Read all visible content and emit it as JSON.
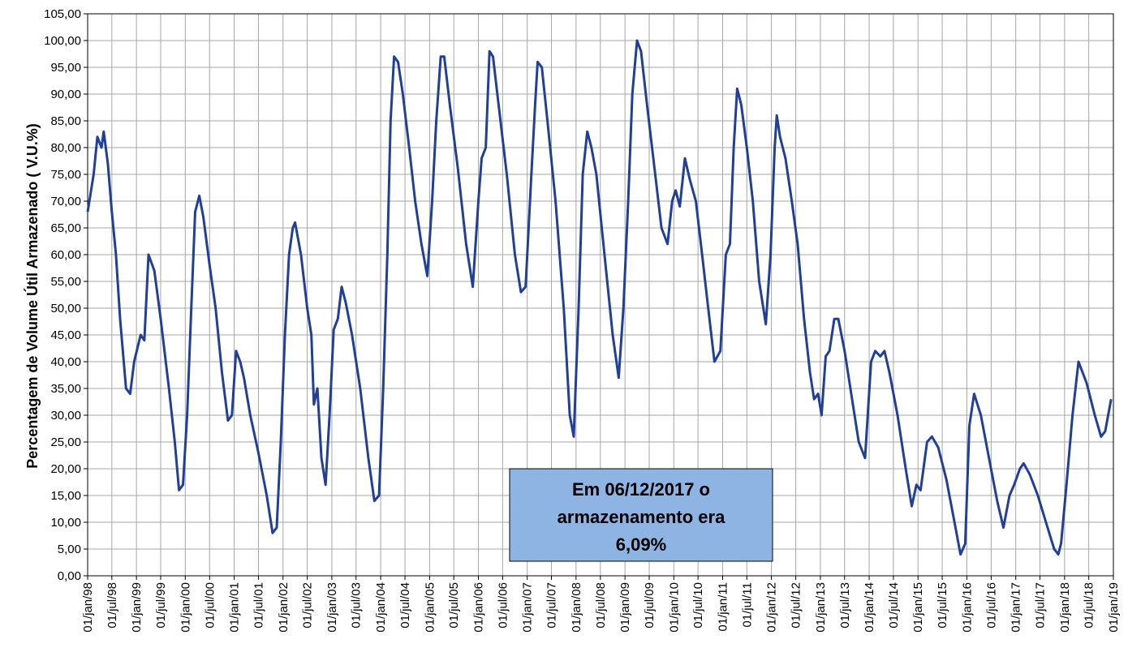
{
  "chart_data": {
    "type": "line",
    "y_label": "Percentagem de Volume Útil Armazenado ( V.U.%)",
    "annotation": [
      "Em 06/12/2017 o",
      "armazenamento era",
      "6,09%"
    ],
    "color": "#1f3f99",
    "grid": true,
    "x": [
      "1998-01-01",
      "1998-02-15",
      "1998-03-15",
      "1998-04-15",
      "1998-05-01",
      "1998-06-01",
      "1998-07-01",
      "1998-08-01",
      "1998-09-01",
      "1998-10-15",
      "1998-11-15",
      "1998-12-15",
      "1999-02-01",
      "1999-03-01",
      "1999-04-01",
      "1999-05-15",
      "1999-07-01",
      "1999-09-01",
      "1999-10-15",
      "1999-11-15",
      "1999-12-15",
      "2000-01-15",
      "2000-02-15",
      "2000-03-15",
      "2000-04-15",
      "2000-05-15",
      "2000-07-01",
      "2000-08-15",
      "2000-10-01",
      "2000-11-15",
      "2000-12-15",
      "2001-01-15",
      "2001-02-15",
      "2001-03-15",
      "2001-05-01",
      "2001-07-01",
      "2001-09-01",
      "2001-10-15",
      "2001-11-15",
      "2001-12-15",
      "2002-01-15",
      "2002-02-15",
      "2002-03-15",
      "2002-04-01",
      "2002-05-15",
      "2002-07-01",
      "2002-08-01",
      "2002-08-20",
      "2002-09-15",
      "2002-10-15",
      "2002-11-15",
      "2002-12-15",
      "2003-01-15",
      "2003-02-15",
      "2003-03-15",
      "2003-04-15",
      "2003-06-01",
      "2003-08-01",
      "2003-10-01",
      "2003-11-15",
      "2003-12-20",
      "2004-01-20",
      "2004-02-20",
      "2004-03-15",
      "2004-04-10",
      "2004-05-10",
      "2004-06-15",
      "2004-08-01",
      "2004-09-15",
      "2004-11-01",
      "2004-12-15",
      "2005-01-20",
      "2005-02-20",
      "2005-03-25",
      "2005-04-20",
      "2005-06-01",
      "2005-08-01",
      "2005-10-01",
      "2005-11-20",
      "2006-01-01",
      "2006-01-25",
      "2006-02-25",
      "2006-03-25",
      "2006-04-20",
      "2006-06-01",
      "2006-08-01",
      "2006-10-01",
      "2006-11-15",
      "2006-12-20",
      "2007-02-01",
      "2007-03-01",
      "2007-03-20",
      "2007-04-20",
      "2007-06-01",
      "2007-08-01",
      "2007-10-01",
      "2007-11-15",
      "2007-12-15",
      "2008-01-20",
      "2008-02-20",
      "2008-03-25",
      "2008-04-25",
      "2008-06-01",
      "2008-08-01",
      "2008-10-01",
      "2008-11-15",
      "2008-12-20",
      "2009-01-25",
      "2009-02-25",
      "2009-04-01",
      "2009-05-01",
      "2009-06-15",
      "2009-08-15",
      "2009-10-01",
      "2009-11-15",
      "2009-12-20",
      "2010-01-15",
      "2010-02-15",
      "2010-03-25",
      "2010-05-01",
      "2010-06-15",
      "2010-08-01",
      "2010-09-15",
      "2010-11-01",
      "2010-12-15",
      "2011-01-25",
      "2011-02-25",
      "2011-03-25",
      "2011-04-20",
      "2011-05-20",
      "2011-07-01",
      "2011-08-15",
      "2011-10-01",
      "2011-11-20",
      "2011-12-25",
      "2012-01-25",
      "2012-02-10",
      "2012-03-05",
      "2012-04-15",
      "2012-06-01",
      "2012-07-15",
      "2012-09-01",
      "2012-10-15",
      "2012-11-15",
      "2012-12-15",
      "2013-01-10",
      "2013-02-10",
      "2013-03-10",
      "2013-04-15",
      "2013-05-15",
      "2013-07-01",
      "2013-09-01",
      "2013-10-15",
      "2013-12-01",
      "2014-01-15",
      "2014-02-15",
      "2014-03-25",
      "2014-04-25",
      "2014-06-01",
      "2014-08-01",
      "2014-10-01",
      "2014-11-15",
      "2014-12-20",
      "2015-01-20",
      "2015-03-10",
      "2015-04-15",
      "2015-06-01",
      "2015-08-01",
      "2015-10-01",
      "2015-11-15",
      "2015-12-20",
      "2016-01-20",
      "2016-02-25",
      "2016-04-15",
      "2016-06-15",
      "2016-08-15",
      "2016-10-01",
      "2016-11-15",
      "2016-12-20",
      "2017-02-01",
      "2017-03-01",
      "2017-04-15",
      "2017-06-15",
      "2017-08-15",
      "2017-10-15",
      "2017-11-15",
      "2017-12-06",
      "2018-01-15",
      "2018-03-01",
      "2018-04-15",
      "2018-06-15",
      "2018-08-15",
      "2018-10-01",
      "2018-11-01",
      "2018-12-15"
    ],
    "values": [
      68,
      75,
      82,
      80,
      83,
      77,
      68,
      60,
      48,
      35,
      34,
      40,
      45,
      44,
      60,
      57,
      48,
      35,
      25,
      16,
      17,
      30,
      50,
      68,
      71,
      67,
      58,
      50,
      38,
      29,
      30,
      42,
      40,
      37,
      30,
      23,
      15,
      8,
      9,
      25,
      45,
      60,
      65,
      66,
      60,
      50,
      45,
      32,
      35,
      22,
      17,
      30,
      46,
      48,
      54,
      51,
      45,
      35,
      22,
      14,
      15,
      35,
      60,
      85,
      97,
      96,
      90,
      80,
      70,
      62,
      56,
      70,
      85,
      97,
      97,
      88,
      76,
      62,
      54,
      70,
      78,
      80,
      98,
      97,
      88,
      75,
      60,
      53,
      54,
      75,
      88,
      96,
      95,
      85,
      70,
      50,
      30,
      26,
      50,
      75,
      83,
      80,
      75,
      60,
      45,
      37,
      50,
      70,
      90,
      100,
      98,
      88,
      75,
      65,
      62,
      70,
      72,
      69,
      78,
      74,
      70,
      60,
      50,
      40,
      42,
      60,
      62,
      80,
      91,
      88,
      80,
      70,
      55,
      47,
      60,
      80,
      86,
      82,
      78,
      70,
      62,
      48,
      38,
      33,
      34,
      30,
      41,
      42,
      48,
      48,
      42,
      32,
      25,
      22,
      40,
      42,
      41,
      42,
      38,
      30,
      20,
      13,
      17,
      16,
      25,
      26,
      24,
      18,
      10,
      4,
      6,
      28,
      34,
      30,
      22,
      14,
      9,
      15,
      17,
      20,
      21,
      19,
      15,
      10,
      5,
      4,
      6.09,
      17,
      30,
      40,
      36,
      30,
      26,
      27,
      33
    ],
    "xlim": [
      "1998-01-01",
      "2019-01-01"
    ],
    "xticks": [
      {
        "value": "1998-01-01",
        "label": "01/jan/98"
      },
      {
        "value": "1998-07-01",
        "label": "01/jul/98"
      },
      {
        "value": "1999-01-01",
        "label": "01/jan/99"
      },
      {
        "value": "1999-07-01",
        "label": "01/jul/99"
      },
      {
        "value": "2000-01-01",
        "label": "01/jan/00"
      },
      {
        "value": "2000-07-01",
        "label": "01/jul/00"
      },
      {
        "value": "2001-01-01",
        "label": "01/jan/01"
      },
      {
        "value": "2001-07-01",
        "label": "01/jul/01"
      },
      {
        "value": "2002-01-01",
        "label": "01/jan/02"
      },
      {
        "value": "2002-07-01",
        "label": "01/jul/02"
      },
      {
        "value": "2003-01-01",
        "label": "01/jan/03"
      },
      {
        "value": "2003-07-01",
        "label": "01/jul/03"
      },
      {
        "value": "2004-01-01",
        "label": "01/jan/04"
      },
      {
        "value": "2004-07-01",
        "label": "01/jul/04"
      },
      {
        "value": "2005-01-01",
        "label": "01/jan/05"
      },
      {
        "value": "2005-07-01",
        "label": "01/jul/05"
      },
      {
        "value": "2006-01-01",
        "label": "01/jan/06"
      },
      {
        "value": "2006-07-01",
        "label": "01/jul/06"
      },
      {
        "value": "2007-01-01",
        "label": "01/jan/07"
      },
      {
        "value": "2007-07-01",
        "label": "01/jul/07"
      },
      {
        "value": "2008-01-01",
        "label": "01/jan/08"
      },
      {
        "value": "2008-07-01",
        "label": "01/jul/08"
      },
      {
        "value": "2009-01-01",
        "label": "01/jan/09"
      },
      {
        "value": "2009-07-01",
        "label": "01/jul/09"
      },
      {
        "value": "2010-01-01",
        "label": "01/jan/10"
      },
      {
        "value": "2010-07-01",
        "label": "01/jul/10"
      },
      {
        "value": "2011-01-01",
        "label": "01/jan/11"
      },
      {
        "value": "2011-07-01",
        "label": "01/jul/11"
      },
      {
        "value": "2012-01-01",
        "label": "01/jan/12"
      },
      {
        "value": "2012-07-01",
        "label": "01/jul/12"
      },
      {
        "value": "2013-01-01",
        "label": "01/jan/13"
      },
      {
        "value": "2013-07-01",
        "label": "01/jul/13"
      },
      {
        "value": "2014-01-01",
        "label": "01/jan/14"
      },
      {
        "value": "2014-07-01",
        "label": "01/jul/14"
      },
      {
        "value": "2015-01-01",
        "label": "01/jan/15"
      },
      {
        "value": "2015-07-01",
        "label": "01/jul/15"
      },
      {
        "value": "2016-01-01",
        "label": "01/jan/16"
      },
      {
        "value": "2016-07-01",
        "label": "01/jul/16"
      },
      {
        "value": "2017-01-01",
        "label": "01/jan/17"
      },
      {
        "value": "2017-07-01",
        "label": "01/jul/17"
      },
      {
        "value": "2018-01-01",
        "label": "01/jan/18"
      },
      {
        "value": "2018-07-01",
        "label": "01/jul/18"
      },
      {
        "value": "2019-01-01",
        "label": "01/jan/19"
      }
    ],
    "ylim": [
      0,
      105
    ],
    "yticks": [
      {
        "value": 0,
        "label": "0,00"
      },
      {
        "value": 5,
        "label": "5,00"
      },
      {
        "value": 10,
        "label": "10,00"
      },
      {
        "value": 15,
        "label": "15,00"
      },
      {
        "value": 20,
        "label": "20,00"
      },
      {
        "value": 25,
        "label": "25,00"
      },
      {
        "value": 30,
        "label": "30,00"
      },
      {
        "value": 35,
        "label": "35,00"
      },
      {
        "value": 40,
        "label": "40,00"
      },
      {
        "value": 45,
        "label": "45,00"
      },
      {
        "value": 50,
        "label": "50,00"
      },
      {
        "value": 55,
        "label": "55,00"
      },
      {
        "value": 60,
        "label": "60,00"
      },
      {
        "value": 65,
        "label": "65,00"
      },
      {
        "value": 70,
        "label": "70,00"
      },
      {
        "value": 75,
        "label": "75,00"
      },
      {
        "value": 80,
        "label": "80,00"
      },
      {
        "value": 85,
        "label": "85,00"
      },
      {
        "value": 90,
        "label": "90,00"
      },
      {
        "value": 95,
        "label": "95,00"
      },
      {
        "value": 100,
        "label": "100,00"
      },
      {
        "value": 105,
        "label": "105,00"
      }
    ]
  }
}
